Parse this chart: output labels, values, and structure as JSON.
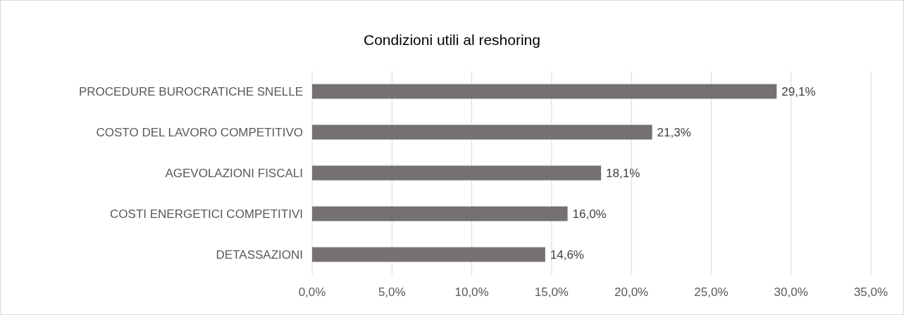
{
  "chart_data": {
    "type": "bar",
    "orientation": "horizontal",
    "title": "Condizioni utili al reshoring",
    "categories": [
      "PROCEDURE BUROCRATICHE SNELLE",
      "COSTO DEL LAVORO COMPETITIVO",
      "AGEVOLAZIONI FISCALI",
      "COSTI ENERGETICI COMPETITIVI",
      "DETASSAZIONI"
    ],
    "values": [
      29.1,
      21.3,
      18.1,
      16.0,
      14.6
    ],
    "value_labels": [
      "29,1%",
      "21,3%",
      "18,1%",
      "16,0%",
      "14,6%"
    ],
    "color": "#767171",
    "xlim": [
      0,
      35
    ],
    "xticks": [
      {
        "value": 0,
        "label": "0,0%"
      },
      {
        "value": 5,
        "label": "5,0%"
      },
      {
        "value": 10,
        "label": "10,0%"
      },
      {
        "value": 15,
        "label": "15,0%"
      },
      {
        "value": 20,
        "label": "20,0%"
      },
      {
        "value": 25,
        "label": "25,0%"
      },
      {
        "value": 30,
        "label": "30,0%"
      },
      {
        "value": 35,
        "label": "35,0%"
      }
    ],
    "grid": "x"
  }
}
